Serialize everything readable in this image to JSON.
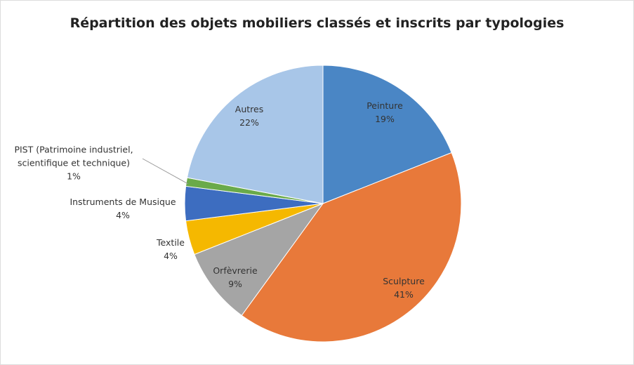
{
  "chart_data": {
    "type": "pie",
    "title": "Répartition des objets mobiliers classés et inscrits par typologies",
    "categories": [
      "Peinture",
      "Sculpture",
      "Orfèvrerie",
      "Textile",
      "Instruments de Musique",
      "PIST (Patrimoine industriel, scientifique et technique)",
      "Autres"
    ],
    "values": [
      19,
      41,
      9,
      4,
      4,
      1,
      22
    ],
    "value_labels": [
      "19%",
      "41%",
      "9%",
      "4%",
      "4%",
      "1%",
      "22%"
    ],
    "colors": [
      "#4a86c5",
      "#e8793a",
      "#a5a5a5",
      "#f5b800",
      "#3d6dc0",
      "#6aaa4a",
      "#a8c6e8"
    ]
  }
}
